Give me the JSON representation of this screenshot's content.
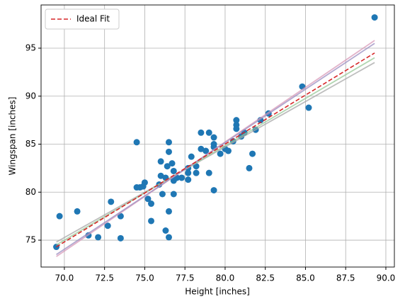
{
  "chart_data": {
    "type": "scatter",
    "xlabel": "Height [inches]",
    "ylabel": "Wingspan [inches]",
    "color": "#1f77b4",
    "x": [
      69.5,
      69.7,
      70.8,
      71.5,
      72.1,
      72.7,
      72.9,
      73.5,
      73.5,
      74.5,
      74.5,
      74.7,
      74.9,
      75,
      75.2,
      75.4,
      75.4,
      75.9,
      76,
      76,
      76.1,
      76.3,
      76.3,
      76.4,
      76.5,
      76.5,
      76.5,
      76.5,
      76.7,
      76.8,
      76.8,
      76.8,
      77,
      77.3,
      77.7,
      77.7,
      77.7,
      77.9,
      78.2,
      78.2,
      78.5,
      78.5,
      78.8,
      79,
      79,
      79.3,
      79.3,
      79.3,
      79.3,
      79.7,
      80,
      80.2,
      80.5,
      80.7,
      80.7,
      80.7,
      81,
      81.2,
      81.5,
      81.7,
      81.9,
      82.2,
      82.7,
      84.8,
      85.2,
      89.3
    ],
    "values": [
      74.3,
      77.5,
      78,
      75.5,
      75.3,
      76.5,
      79,
      77.5,
      75.2,
      85.2,
      80.5,
      80.5,
      80.6,
      81,
      79.3,
      78.8,
      77,
      80.8,
      81.7,
      83.2,
      79.8,
      76,
      81.5,
      82.7,
      78,
      84.2,
      85.2,
      75.3,
      83,
      82.2,
      81.2,
      79.8,
      81.5,
      81.5,
      81.3,
      82,
      82.5,
      83.7,
      82.7,
      82,
      86.2,
      84.5,
      84.3,
      86.2,
      82,
      85.7,
      85,
      84.7,
      80.2,
      84,
      84.5,
      84.3,
      85.3,
      87.5,
      87,
      86.6,
      85.8,
      86.2,
      82.5,
      84,
      86.5,
      87.5,
      88.2,
      91,
      88.8,
      98.2
    ],
    "series": [
      {
        "color": "#a8a8a8",
        "x": [
          69.5,
          89.3
        ],
        "values": [
          74.8,
          93.5
        ]
      },
      {
        "color": "#98c898",
        "x": [
          69.5,
          89.3
        ],
        "values": [
          74.5,
          94.0
        ]
      },
      {
        "color": "#d89ab8",
        "x": [
          69.5,
          89.3
        ],
        "values": [
          73.3,
          95.8
        ]
      },
      {
        "color": "#9a8cc0",
        "x": [
          69.5,
          89.3
        ],
        "values": [
          73.5,
          95.5
        ]
      },
      {
        "name": "Ideal Fit",
        "color": "#d62728",
        "dashed": true,
        "x": [
          69.5,
          89.3
        ],
        "values": [
          74.3,
          94.5
        ]
      }
    ],
    "xlim": [
      68.55,
      90.53
    ],
    "ylim": [
      72.2,
      99.5
    ],
    "xticks": [
      {
        "value": 70,
        "label": "70.0"
      },
      {
        "value": 72.5,
        "label": "72.5"
      },
      {
        "value": 75,
        "label": "75.0"
      },
      {
        "value": 77.5,
        "label": "77.5"
      },
      {
        "value": 80,
        "label": "80.0"
      },
      {
        "value": 82.5,
        "label": "82.5"
      },
      {
        "value": 85,
        "label": "85.0"
      },
      {
        "value": 87.5,
        "label": "87.5"
      },
      {
        "value": 90,
        "label": "90.0"
      }
    ],
    "yticks": [
      75,
      80,
      85,
      90,
      95
    ],
    "grid": true,
    "legend": "upper left"
  }
}
